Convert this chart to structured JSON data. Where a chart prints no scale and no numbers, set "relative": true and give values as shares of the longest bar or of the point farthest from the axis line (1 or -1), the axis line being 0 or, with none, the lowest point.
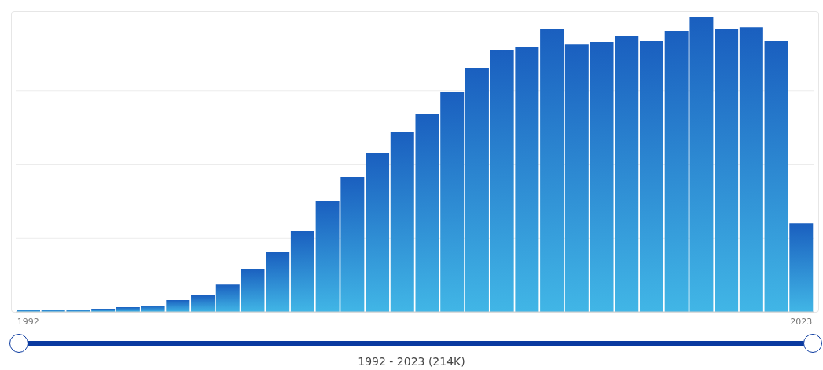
{
  "chart_data": {
    "type": "bar",
    "relative": true,
    "grid": "y",
    "color": "#1a5fbf",
    "categories": [
      "1992",
      null,
      null,
      null,
      null,
      null,
      null,
      null,
      null,
      null,
      null,
      null,
      null,
      null,
      null,
      null,
      null,
      null,
      null,
      null,
      null,
      null,
      null,
      null,
      null,
      null,
      null,
      null,
      null,
      null,
      null,
      "2023"
    ],
    "values": [
      0.008,
      0.008,
      0.008,
      0.011,
      0.016,
      0.021,
      0.04,
      0.056,
      0.093,
      0.147,
      0.203,
      0.275,
      0.376,
      0.459,
      0.539,
      0.611,
      0.672,
      0.747,
      0.829,
      0.888,
      0.899,
      0.96,
      0.909,
      0.915,
      0.936,
      0.92,
      0.952,
      1,
      0.96,
      0.965,
      0.92,
      0.301
    ],
    "annotations": [
      "1992 - 2023 (214K)"
    ]
  }
}
